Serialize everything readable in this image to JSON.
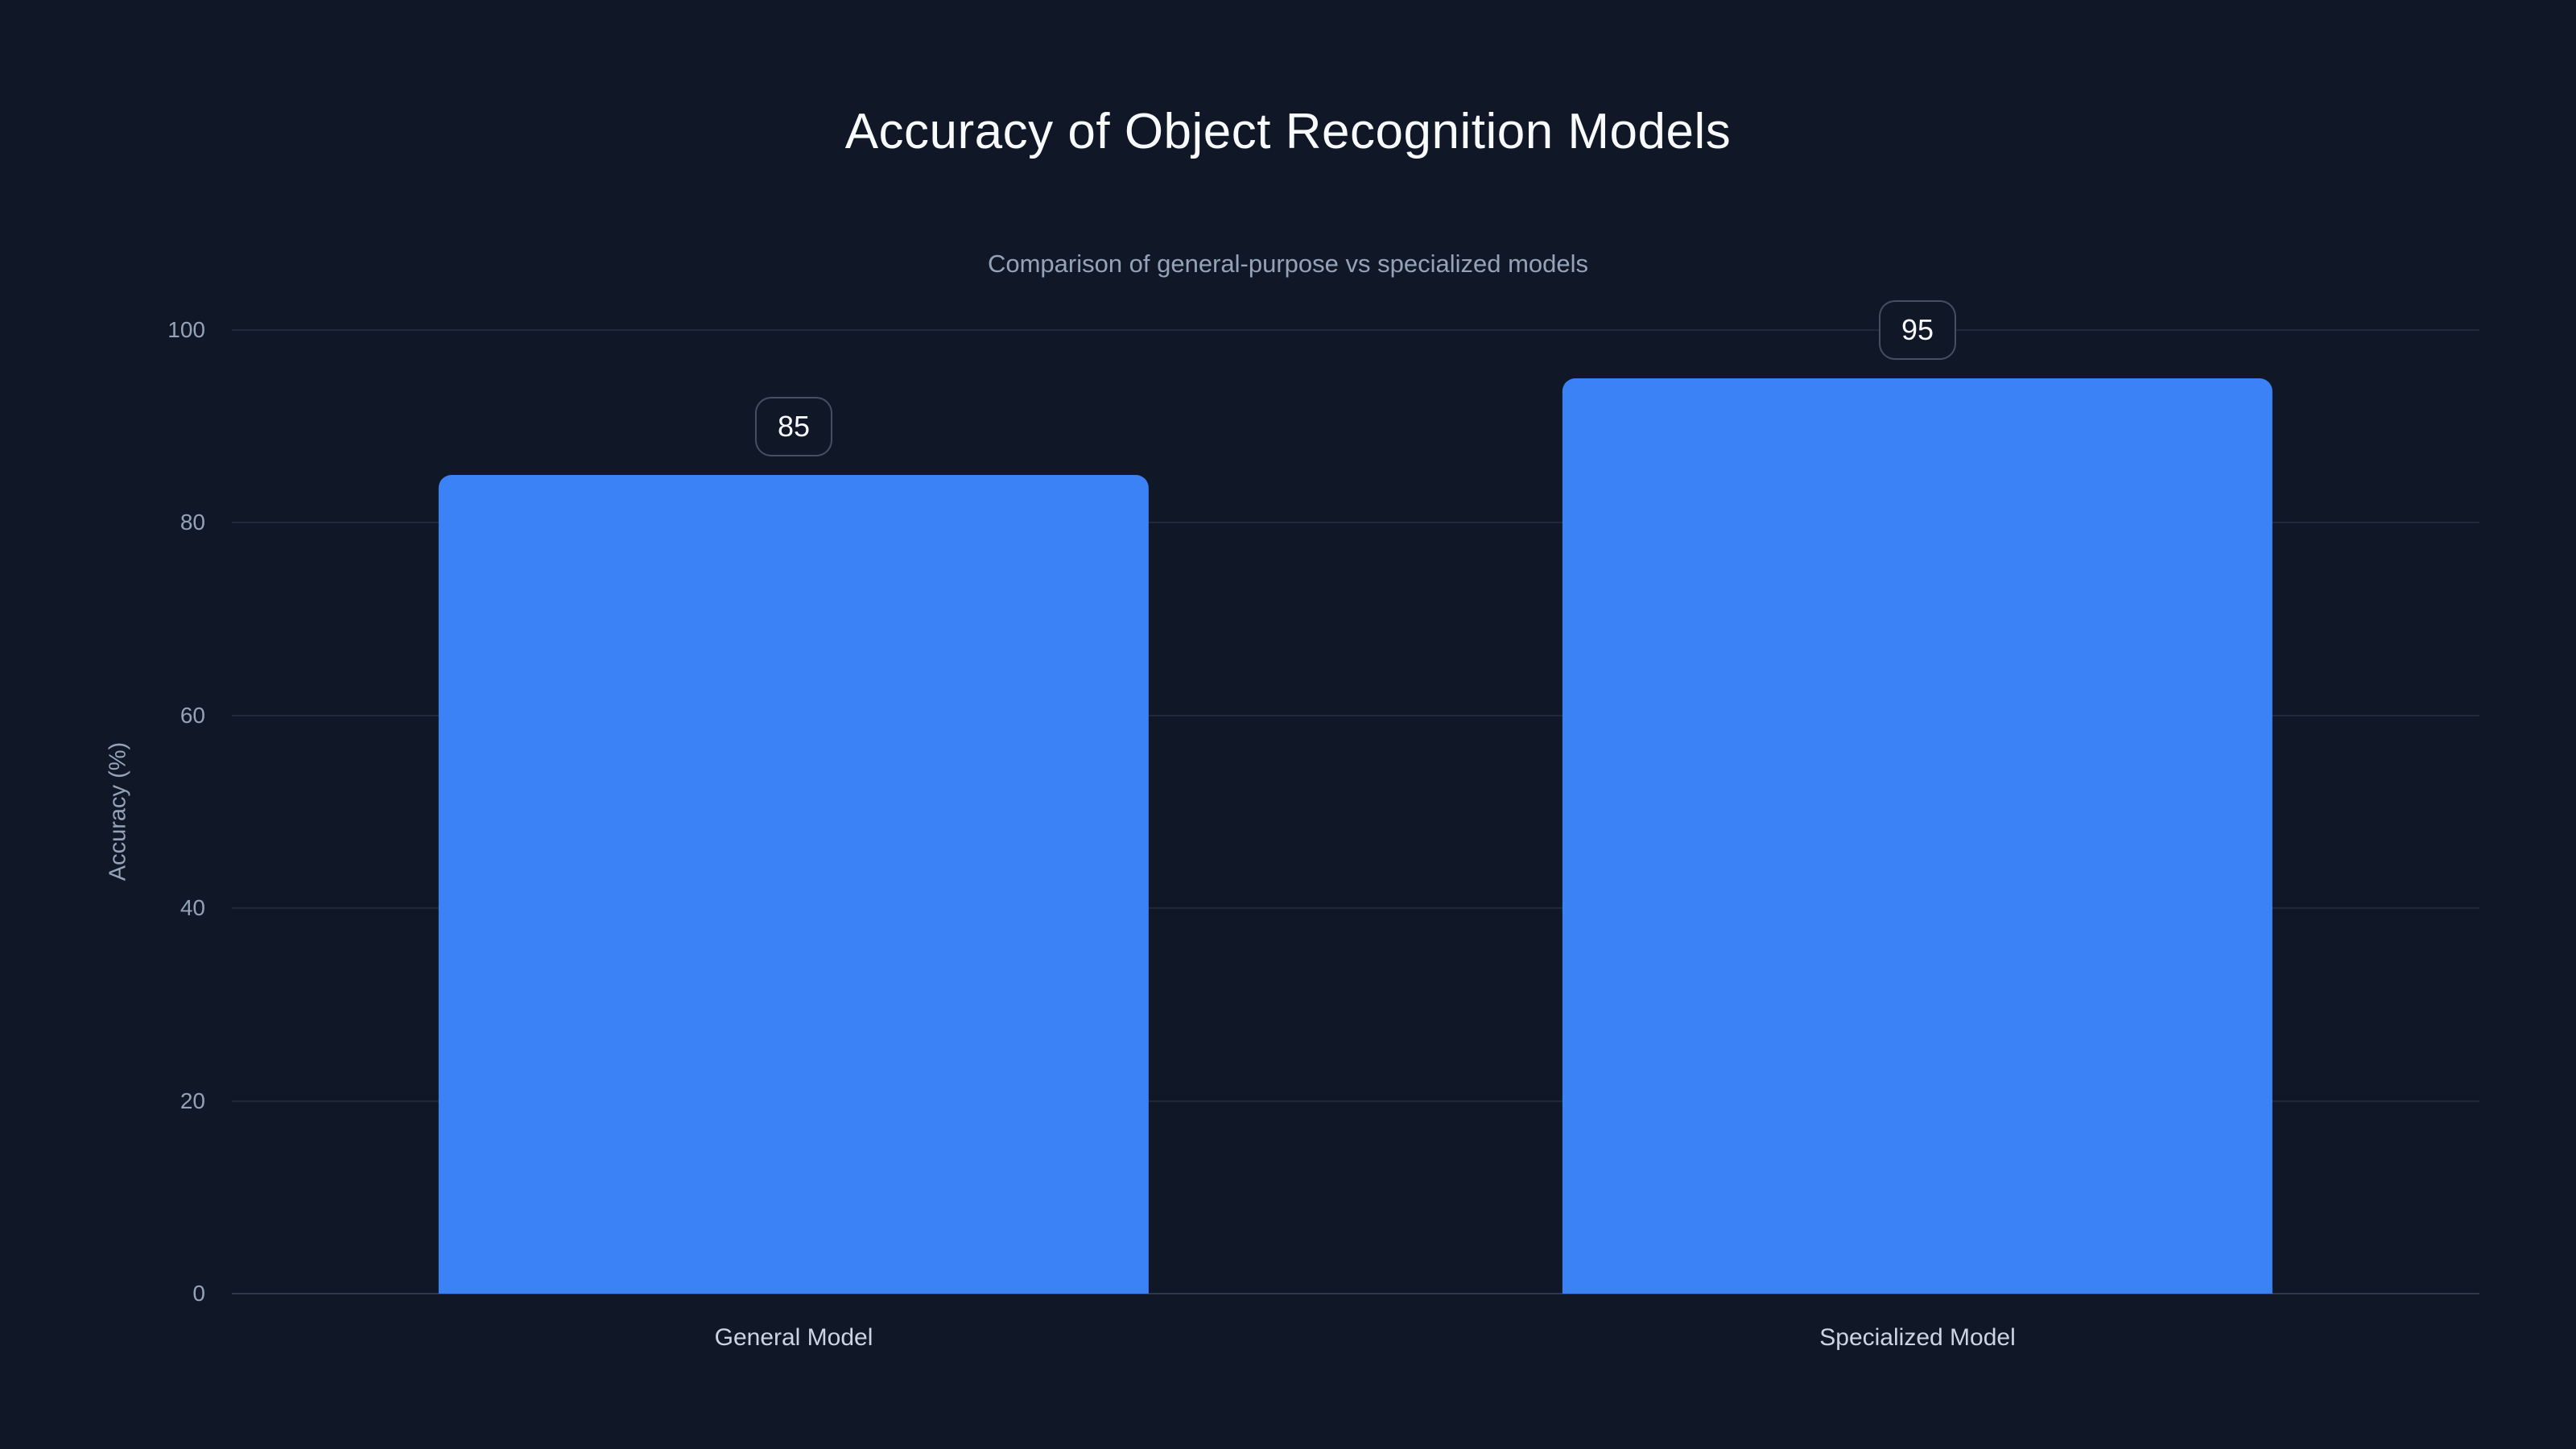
{
  "header": {
    "title": "Accuracy of Object Recognition Models",
    "subtitle": "Comparison of general-purpose vs specialized models"
  },
  "chart_data": {
    "type": "bar",
    "title": "Accuracy of Object Recognition Models",
    "subtitle": "Comparison of general-purpose vs specialized models",
    "categories": [
      "General Model",
      "Specialized Model"
    ],
    "values": [
      85,
      95
    ],
    "value_labels": [
      "85",
      "95"
    ],
    "xlabel": "",
    "ylabel": "Accuracy (%)",
    "ylim": [
      0,
      100
    ],
    "yticks": [
      0,
      20,
      40,
      60,
      80,
      100
    ],
    "grid": "horizontal",
    "legend": "none",
    "orientation": "vertical",
    "bar_color": "#3b82f6"
  },
  "theme": {
    "background": "#101827",
    "title_color": "#f8fafc",
    "subtitle_color": "#94a3b8",
    "tick_color": "#94a3b8",
    "category_label_color": "#cbd5e1",
    "grid_color": "rgba(148,163,184,0.13)",
    "accent": "#3b82f6"
  }
}
